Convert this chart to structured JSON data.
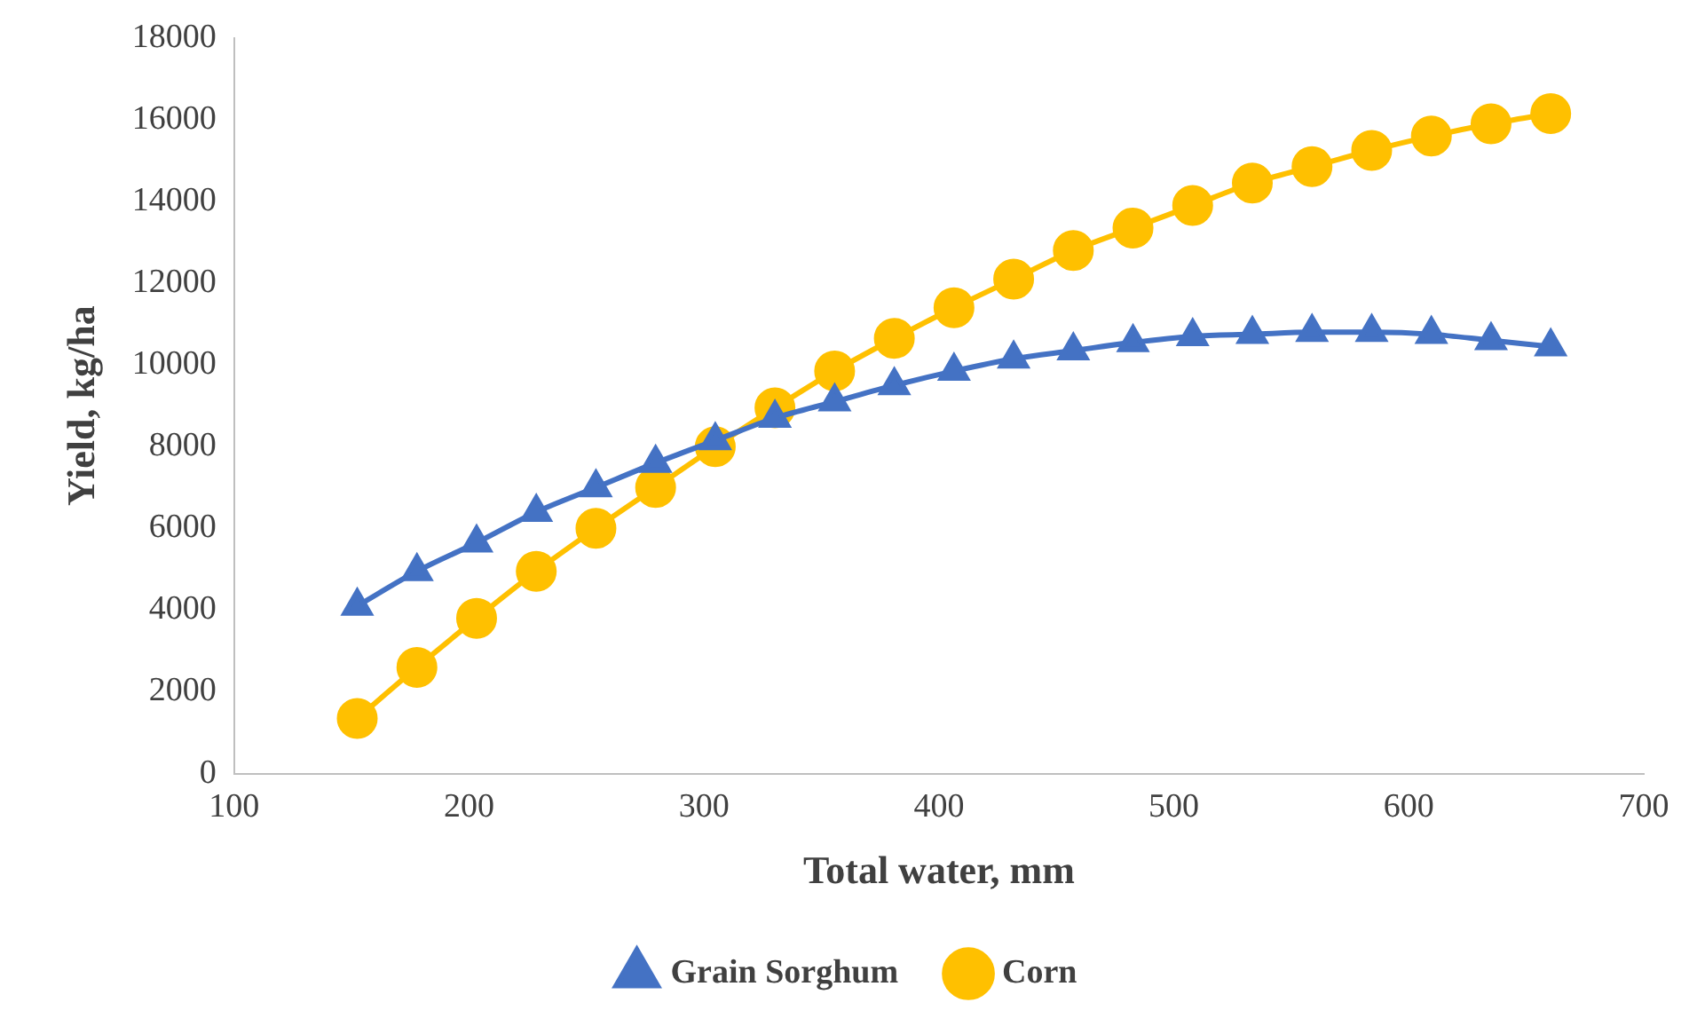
{
  "chart_data": {
    "type": "line",
    "xlabel": "Total water, mm",
    "ylabel": "Yield, kg/ha",
    "x": [
      152.4,
      177.8,
      203.2,
      228.6,
      254,
      279.4,
      304.8,
      330.2,
      355.6,
      381,
      406.4,
      431.8,
      457.2,
      482.6,
      508,
      533.4,
      558.8,
      584.2,
      609.6,
      635,
      660.4
    ],
    "series": [
      {
        "name": "Grain Sorghum",
        "color": "#4472c4",
        "marker": "triangle",
        "values": [
          4100,
          4950,
          5650,
          6400,
          7000,
          7600,
          8150,
          8700,
          9100,
          9500,
          9850,
          10150,
          10350,
          10550,
          10700,
          10750,
          10800,
          10800,
          10750,
          10600,
          10450
        ]
      },
      {
        "name": "Corn",
        "color": "#ffc000",
        "marker": "circle",
        "values": [
          1350,
          2600,
          3800,
          4950,
          6000,
          7000,
          8000,
          8950,
          9850,
          10650,
          11400,
          12100,
          12800,
          13350,
          13900,
          14450,
          14850,
          15250,
          15600,
          15900,
          16150
        ]
      }
    ],
    "xlim": [
      100,
      700
    ],
    "xticks": [
      100,
      200,
      300,
      400,
      500,
      600,
      700
    ],
    "ylim": [
      0,
      18000
    ],
    "yticks": [
      0,
      2000,
      4000,
      6000,
      8000,
      10000,
      12000,
      14000,
      16000,
      18000
    ],
    "grid": false,
    "legend": "bottom"
  }
}
